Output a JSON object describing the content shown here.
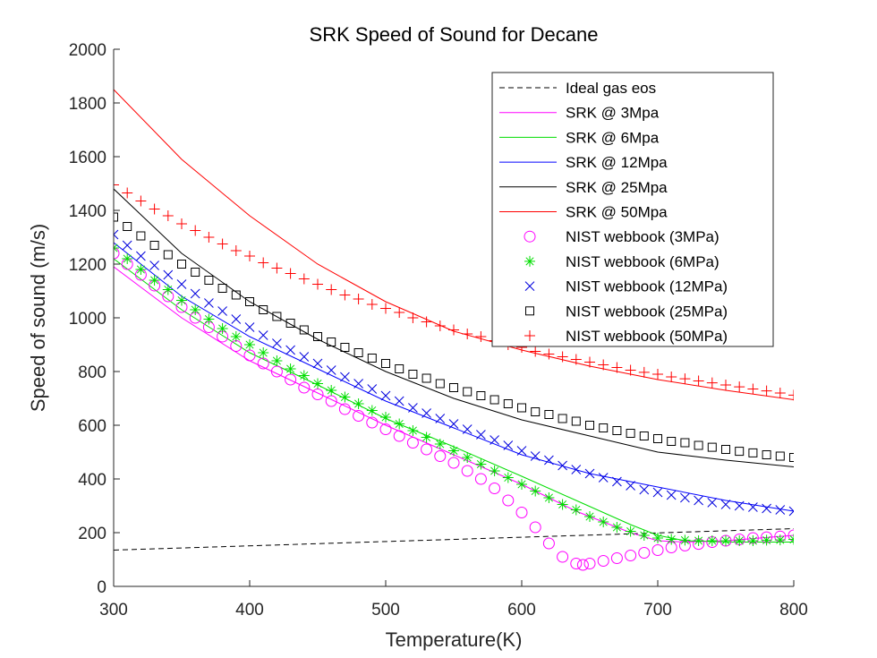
{
  "chart_data": {
    "type": "line",
    "title": "SRK Speed of Sound for Decane",
    "xlabel": "Temperature(K)",
    "ylabel": "Speed of sound (m/s)",
    "xlim": [
      300,
      800
    ],
    "ylim": [
      0,
      2000
    ],
    "xticks": [
      300,
      400,
      500,
      600,
      700,
      800
    ],
    "yticks": [
      0,
      200,
      400,
      600,
      800,
      1000,
      1200,
      1400,
      1600,
      1800,
      2000
    ],
    "grid": false,
    "legend_position": "top-right",
    "series": [
      {
        "name": "Ideal gas eos",
        "kind": "line",
        "style": "dashed",
        "color": "#000000",
        "x": [
          300,
          800
        ],
        "y": [
          135,
          215
        ]
      },
      {
        "name": "SRK @ 3Mpa",
        "kind": "line",
        "style": "solid",
        "color": "#ff00ff",
        "x": [
          300,
          350,
          400,
          450,
          500,
          550,
          600,
          620,
          640,
          660,
          680,
          700,
          720,
          750,
          800
        ],
        "y": [
          1190,
          1000,
          840,
          720,
          600,
          490,
          380,
          330,
          280,
          240,
          200,
          170,
          165,
          170,
          190
        ]
      },
      {
        "name": "SRK @ 6Mpa",
        "kind": "line",
        "style": "solid",
        "color": "#00dd00",
        "x": [
          300,
          350,
          400,
          450,
          500,
          550,
          600,
          640,
          680,
          700,
          720,
          750,
          800
        ],
        "y": [
          1220,
          1030,
          870,
          750,
          625,
          520,
          410,
          320,
          230,
          190,
          170,
          165,
          165
        ]
      },
      {
        "name": "SRK @ 12Mpa",
        "kind": "line",
        "style": "solid",
        "color": "#0000ff",
        "x": [
          300,
          350,
          400,
          450,
          500,
          550,
          600,
          650,
          700,
          750,
          800
        ],
        "y": [
          1280,
          1080,
          930,
          810,
          690,
          590,
          490,
          420,
          370,
          320,
          280
        ]
      },
      {
        "name": "SRK @ 25Mpa",
        "kind": "line",
        "style": "solid",
        "color": "#000000",
        "x": [
          300,
          350,
          400,
          450,
          500,
          550,
          600,
          650,
          700,
          750,
          800
        ],
        "y": [
          1480,
          1240,
          1060,
          920,
          800,
          700,
          620,
          560,
          500,
          470,
          445
        ]
      },
      {
        "name": "SRK @ 50Mpa",
        "kind": "line",
        "style": "solid",
        "color": "#ff0000",
        "x": [
          300,
          350,
          400,
          450,
          500,
          550,
          600,
          650,
          700,
          750,
          800
        ],
        "y": [
          1850,
          1590,
          1380,
          1200,
          1060,
          950,
          880,
          820,
          770,
          730,
          695
        ]
      },
      {
        "name": "NIST webbook (3MPa)",
        "kind": "marker",
        "marker": "circle",
        "color": "#ff00ff",
        "x": [
          300,
          310,
          320,
          330,
          340,
          350,
          360,
          370,
          380,
          390,
          400,
          410,
          420,
          430,
          440,
          450,
          460,
          470,
          480,
          490,
          500,
          510,
          520,
          530,
          540,
          550,
          560,
          570,
          580,
          590,
          600,
          610,
          620,
          630,
          640,
          645,
          650,
          660,
          670,
          680,
          690,
          700,
          710,
          720,
          730,
          740,
          750,
          760,
          770,
          780,
          790,
          800
        ],
        "y": [
          1240,
          1200,
          1160,
          1120,
          1080,
          1040,
          1000,
          965,
          930,
          895,
          860,
          830,
          800,
          770,
          740,
          715,
          690,
          660,
          635,
          610,
          585,
          560,
          535,
          510,
          485,
          460,
          430,
          400,
          365,
          320,
          275,
          220,
          160,
          110,
          85,
          80,
          85,
          95,
          105,
          115,
          125,
          135,
          145,
          152,
          158,
          165,
          170,
          175,
          180,
          183,
          186,
          190
        ]
      },
      {
        "name": "NIST webbook (6MPa)",
        "kind": "marker",
        "marker": "asterisk",
        "color": "#00dd00",
        "x": [
          300,
          310,
          320,
          330,
          340,
          350,
          360,
          370,
          380,
          390,
          400,
          410,
          420,
          430,
          440,
          450,
          460,
          470,
          480,
          490,
          500,
          510,
          520,
          530,
          540,
          550,
          560,
          570,
          580,
          590,
          600,
          610,
          620,
          630,
          640,
          650,
          660,
          670,
          680,
          690,
          700,
          710,
          720,
          730,
          740,
          750,
          760,
          770,
          780,
          790,
          800
        ],
        "y": [
          1260,
          1220,
          1180,
          1140,
          1105,
          1065,
          1030,
          995,
          960,
          930,
          900,
          870,
          840,
          810,
          785,
          755,
          730,
          705,
          680,
          655,
          630,
          605,
          580,
          555,
          530,
          505,
          480,
          455,
          430,
          405,
          380,
          355,
          330,
          305,
          285,
          260,
          240,
          220,
          205,
          190,
          180,
          175,
          172,
          170,
          170,
          170,
          170,
          170,
          172,
          173,
          175
        ]
      },
      {
        "name": "NIST webbook (12MPa)",
        "kind": "marker",
        "marker": "x",
        "color": "#0000dd",
        "x": [
          300,
          310,
          320,
          330,
          340,
          350,
          360,
          370,
          380,
          390,
          400,
          410,
          420,
          430,
          440,
          450,
          460,
          470,
          480,
          490,
          500,
          510,
          520,
          530,
          540,
          550,
          560,
          570,
          580,
          590,
          600,
          610,
          620,
          630,
          640,
          650,
          660,
          670,
          680,
          690,
          700,
          710,
          720,
          730,
          740,
          750,
          760,
          770,
          780,
          790,
          800
        ],
        "y": [
          1310,
          1270,
          1230,
          1195,
          1160,
          1125,
          1090,
          1055,
          1025,
          995,
          965,
          935,
          905,
          880,
          855,
          830,
          805,
          780,
          755,
          735,
          710,
          690,
          665,
          645,
          625,
          605,
          585,
          565,
          545,
          525,
          505,
          485,
          470,
          450,
          435,
          420,
          405,
          390,
          375,
          360,
          350,
          340,
          330,
          320,
          312,
          305,
          300,
          295,
          290,
          285,
          280
        ]
      },
      {
        "name": "NIST webbook (25MPa)",
        "kind": "marker",
        "marker": "square",
        "color": "#000000",
        "x": [
          300,
          310,
          320,
          330,
          340,
          350,
          360,
          370,
          380,
          390,
          400,
          410,
          420,
          430,
          440,
          450,
          460,
          470,
          480,
          490,
          500,
          510,
          520,
          530,
          540,
          550,
          560,
          570,
          580,
          590,
          600,
          610,
          620,
          630,
          640,
          650,
          660,
          670,
          680,
          690,
          700,
          710,
          720,
          730,
          740,
          750,
          760,
          770,
          780,
          790,
          800
        ],
        "y": [
          1375,
          1340,
          1305,
          1270,
          1235,
          1200,
          1170,
          1140,
          1110,
          1085,
          1060,
          1030,
          1005,
          980,
          955,
          930,
          910,
          890,
          870,
          850,
          830,
          810,
          790,
          775,
          755,
          740,
          725,
          710,
          695,
          680,
          665,
          650,
          640,
          625,
          615,
          600,
          590,
          580,
          570,
          560,
          550,
          540,
          535,
          525,
          518,
          510,
          503,
          497,
          490,
          485,
          480
        ]
      },
      {
        "name": "NIST webbook (50MPa)",
        "kind": "marker",
        "marker": "plus",
        "color": "#ff0000",
        "x": [
          300,
          310,
          320,
          330,
          340,
          350,
          360,
          370,
          380,
          390,
          400,
          410,
          420,
          430,
          440,
          450,
          460,
          470,
          480,
          490,
          500,
          510,
          520,
          530,
          540,
          550,
          560,
          570,
          580,
          590,
          600,
          610,
          620,
          630,
          640,
          650,
          660,
          670,
          680,
          690,
          700,
          710,
          720,
          730,
          740,
          750,
          760,
          770,
          780,
          790,
          800
        ],
        "y": [
          1495,
          1465,
          1435,
          1405,
          1380,
          1350,
          1325,
          1300,
          1275,
          1250,
          1230,
          1205,
          1185,
          1165,
          1145,
          1125,
          1105,
          1085,
          1070,
          1050,
          1035,
          1020,
          1000,
          985,
          970,
          955,
          940,
          930,
          915,
          900,
          890,
          875,
          865,
          855,
          845,
          835,
          825,
          815,
          805,
          797,
          790,
          780,
          773,
          765,
          758,
          750,
          743,
          735,
          728,
          720,
          712
        ]
      }
    ]
  }
}
